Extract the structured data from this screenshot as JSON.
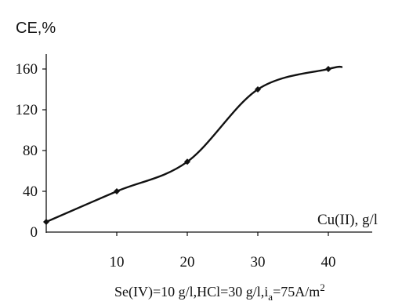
{
  "chart_data": {
    "type": "line",
    "ylabel": "CE,%",
    "xlabel": "Cu(II), g/l",
    "caption": {
      "se": "Se(IV)=10 g/l,HCl=30 g/l,i",
      "sub": "a",
      "rest": "=75A/m",
      "sup": "2"
    },
    "x_ticks": [
      "10",
      "20",
      "30",
      "40"
    ],
    "y_ticks": [
      "0",
      "40",
      "80",
      "120",
      "160"
    ],
    "xlim": [
      0,
      42
    ],
    "ylim": [
      0,
      170
    ],
    "grid": false,
    "series": [
      {
        "x": [
          0,
          10,
          20,
          30,
          40
        ],
        "y": [
          10,
          40,
          69,
          140,
          160
        ]
      }
    ],
    "curve_end": {
      "x": 42,
      "y": 162
    }
  }
}
